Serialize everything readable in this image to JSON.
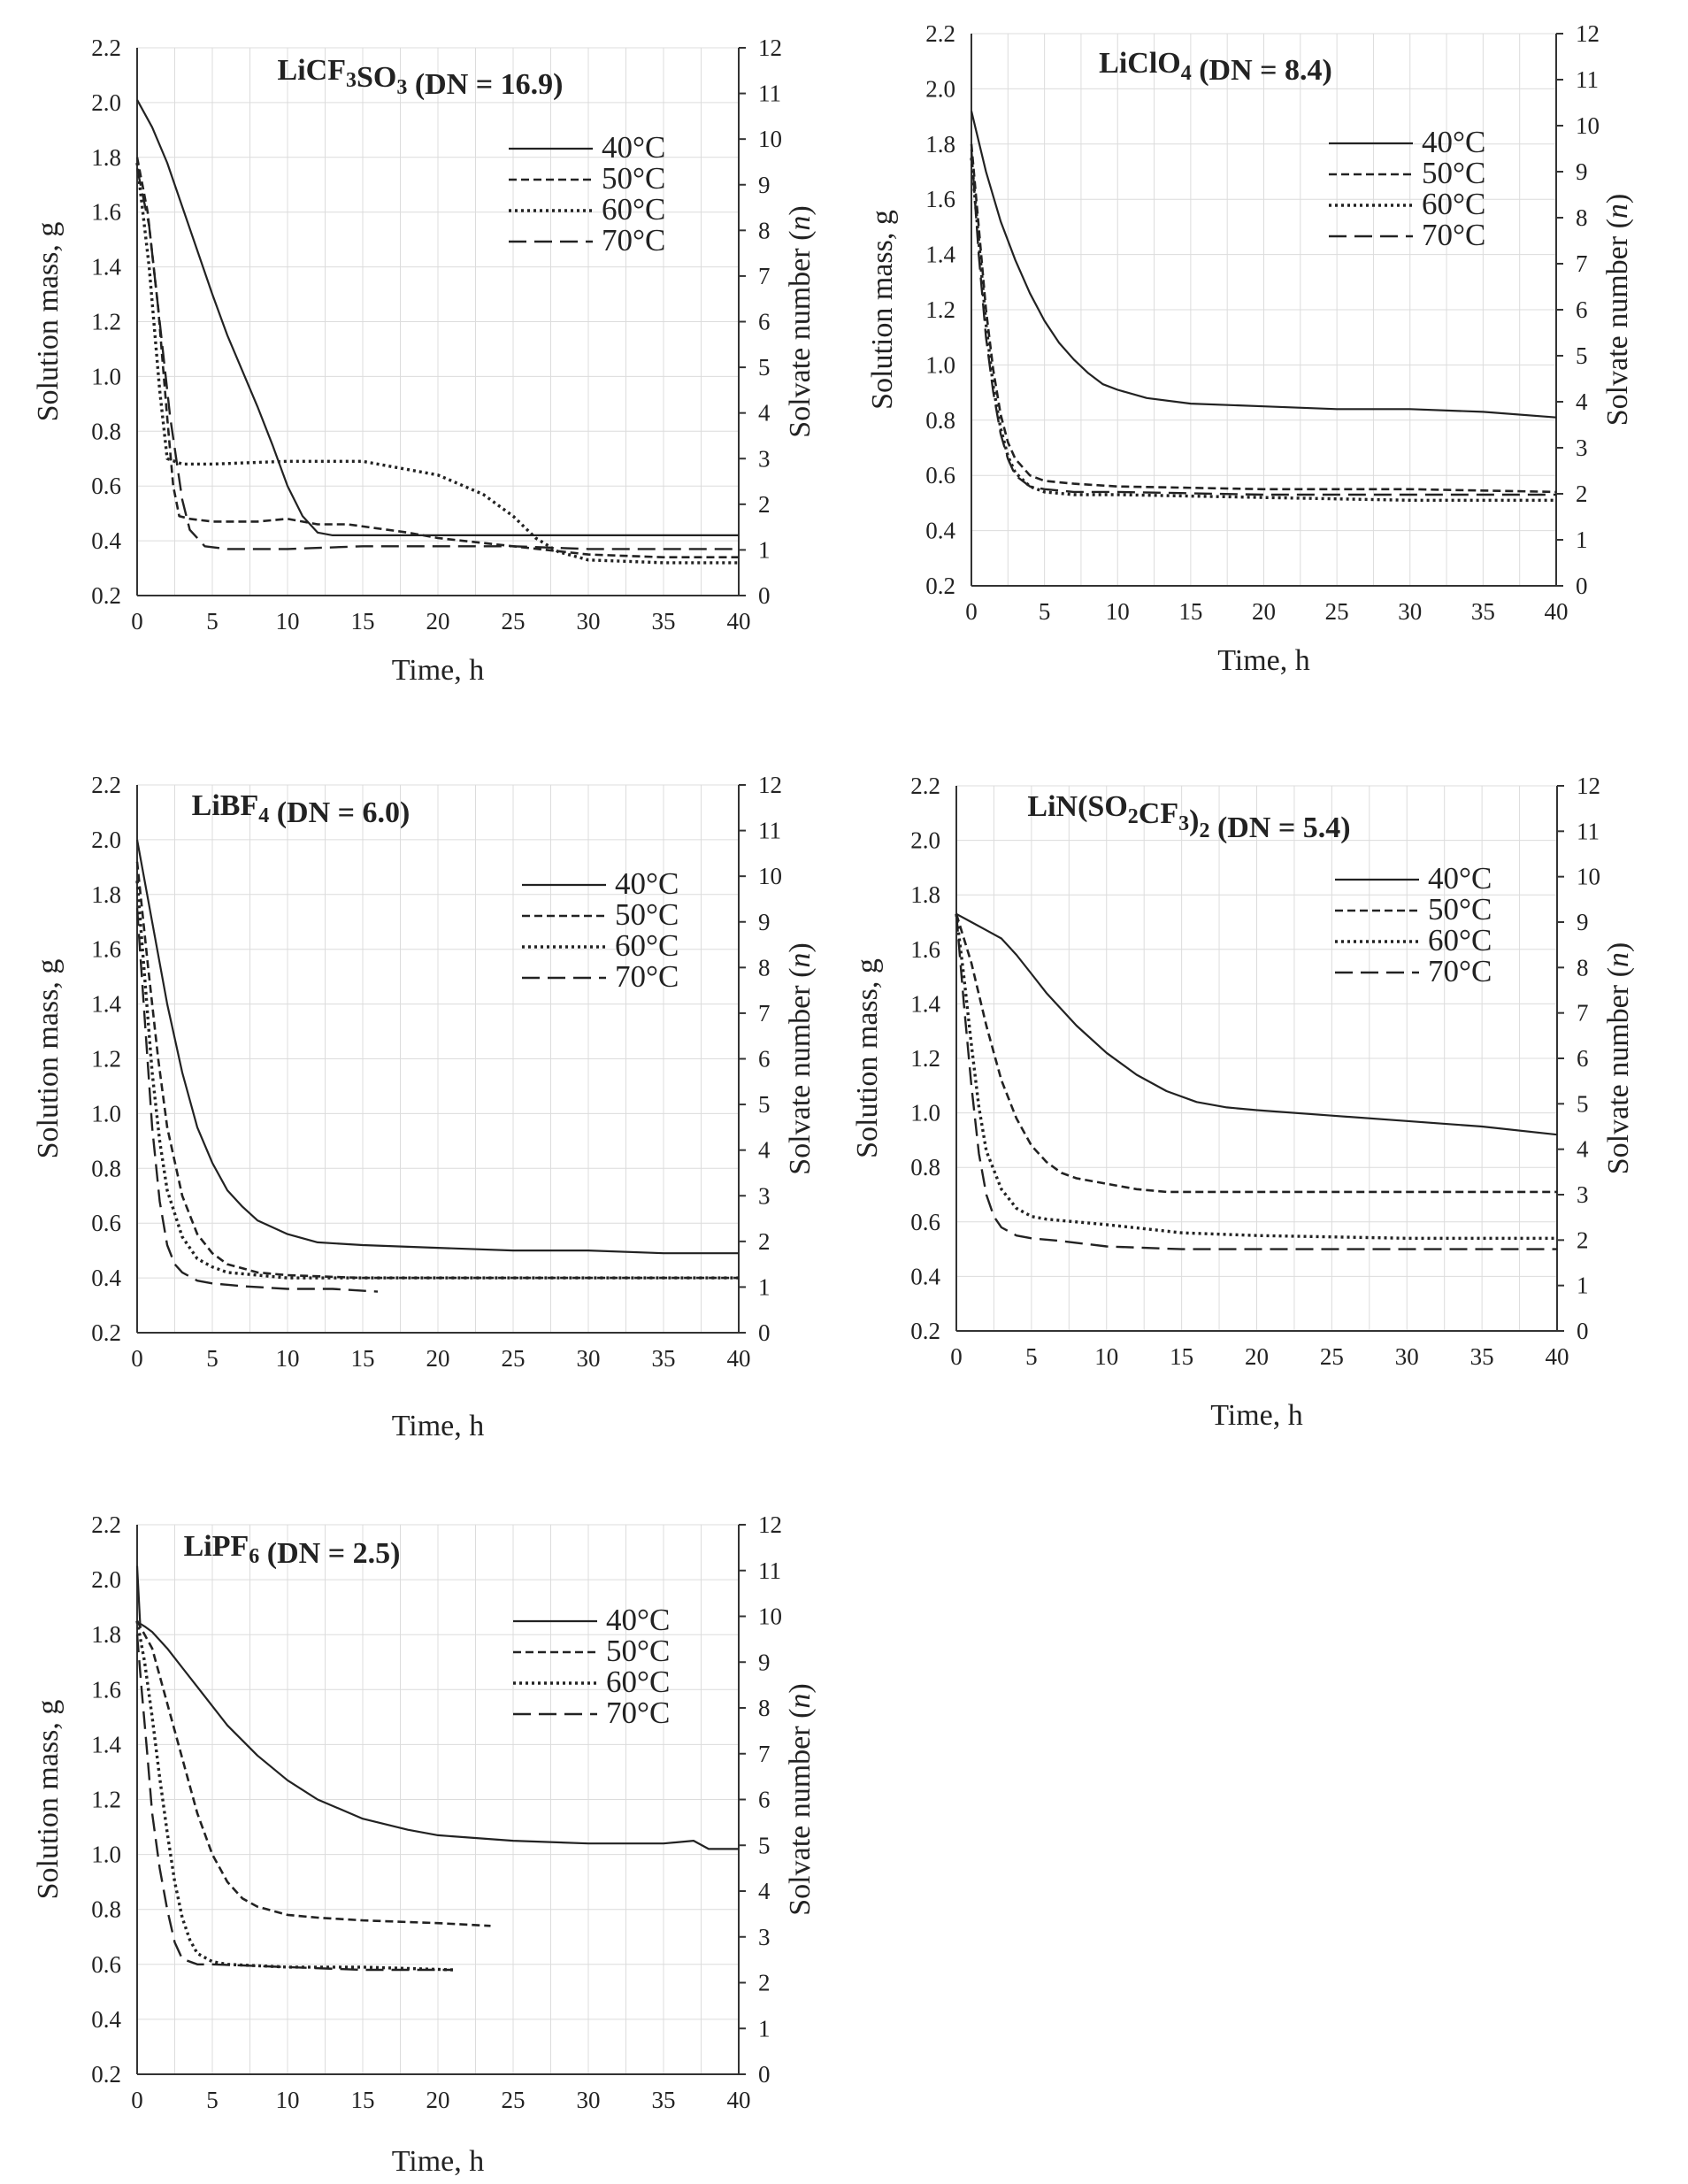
{
  "figure": {
    "common": {
      "xlabel": "Time, h",
      "ylabel_left": "Solution mass, g",
      "ylabel_right_prefix": "Solvate number (",
      "ylabel_right_var": "n",
      "ylabel_right_suffix": ")",
      "colors": {
        "line": "#222222",
        "grid": "#dcdcdc",
        "frame": "#333333",
        "background": "#ffffff"
      },
      "legend_labels": [
        "40°C",
        "50°C",
        "60°C",
        "70°C"
      ],
      "line_styles": [
        "solid",
        "dashed",
        "dotted",
        "long-dashed"
      ]
    }
  },
  "chart_data": [
    {
      "type": "line",
      "title_parts": [
        {
          "t": "LiCF",
          "sub": false
        },
        {
          "t": "3",
          "sub": true
        },
        {
          "t": "SO",
          "sub": false
        },
        {
          "t": "3",
          "sub": true
        },
        {
          "t": " (DN = 16.9)",
          "sub": false
        }
      ],
      "xlabel": "Time, h",
      "ylabel": "Solution mass, g",
      "y2label": "Solvate number (n)",
      "xlim": [
        0,
        40
      ],
      "ylim": [
        0.2,
        2.2
      ],
      "y2lim": [
        0,
        12
      ],
      "xticks": [
        0,
        5,
        10,
        15,
        20,
        25,
        30,
        35,
        40
      ],
      "yticks": [
        "0.2",
        "0.4",
        "0.6",
        "0.8",
        "1.0",
        "1.2",
        "1.4",
        "1.6",
        "1.8",
        "2.0",
        "2.2"
      ],
      "y2ticks": [
        0,
        1,
        2,
        3,
        4,
        5,
        6,
        7,
        8,
        9,
        10,
        11,
        12
      ],
      "legend": "upper-right",
      "series": [
        {
          "name": "40°C",
          "style": "solid",
          "x": [
            0,
            1,
            2,
            3,
            4,
            5,
            6,
            7,
            8,
            9,
            10,
            11,
            12,
            13,
            15,
            20,
            25,
            30,
            35,
            40
          ],
          "y": [
            2.01,
            1.91,
            1.78,
            1.62,
            1.46,
            1.3,
            1.15,
            1.02,
            0.89,
            0.75,
            0.6,
            0.49,
            0.43,
            0.42,
            0.42,
            0.42,
            0.42,
            0.42,
            0.42,
            0.42
          ]
        },
        {
          "name": "50°C",
          "style": "dashed",
          "x": [
            0,
            0.7,
            1.4,
            2,
            2.4,
            2.8,
            3.5,
            5,
            8,
            10,
            12,
            14,
            18,
            20,
            25,
            30,
            35,
            40
          ],
          "y": [
            1.8,
            1.6,
            1.25,
            0.85,
            0.6,
            0.49,
            0.48,
            0.47,
            0.47,
            0.48,
            0.46,
            0.46,
            0.43,
            0.41,
            0.38,
            0.35,
            0.34,
            0.34
          ]
        },
        {
          "name": "60°C",
          "style": "dotted",
          "x": [
            0,
            0.8,
            1.5,
            2,
            3,
            5,
            10,
            15,
            20,
            23,
            25,
            26.5,
            28,
            30,
            35,
            40
          ],
          "y": [
            1.78,
            1.4,
            0.95,
            0.7,
            0.68,
            0.68,
            0.69,
            0.69,
            0.64,
            0.57,
            0.49,
            0.41,
            0.36,
            0.33,
            0.32,
            0.32
          ]
        },
        {
          "name": "70°C",
          "style": "long-dashed",
          "x": [
            0,
            0.8,
            1.5,
            2.2,
            3,
            3.5,
            4.5,
            6,
            10,
            15,
            20,
            25,
            30,
            35,
            40
          ],
          "y": [
            1.76,
            1.55,
            1.2,
            0.85,
            0.55,
            0.44,
            0.38,
            0.37,
            0.37,
            0.38,
            0.38,
            0.38,
            0.37,
            0.37,
            0.37
          ]
        }
      ]
    },
    {
      "type": "line",
      "title_parts": [
        {
          "t": "LiClO",
          "sub": false
        },
        {
          "t": "4",
          "sub": true
        },
        {
          "t": " (DN = 8.4)",
          "sub": false
        }
      ],
      "xlabel": "Time, h",
      "ylabel": "Solution mass, g",
      "y2label": "Solvate number (n)",
      "xlim": [
        0,
        40
      ],
      "ylim": [
        0.2,
        2.2
      ],
      "y2lim": [
        0,
        12
      ],
      "xticks": [
        0,
        5,
        10,
        15,
        20,
        25,
        30,
        35,
        40
      ],
      "yticks": [
        "0.2",
        "0.4",
        "0.6",
        "0.8",
        "1.0",
        "1.2",
        "1.4",
        "1.6",
        "1.8",
        "2.0",
        "2.2"
      ],
      "y2ticks": [
        0,
        1,
        2,
        3,
        4,
        5,
        6,
        7,
        8,
        9,
        10,
        11,
        12
      ],
      "legend": "upper-right",
      "series": [
        {
          "name": "40°C",
          "style": "solid",
          "x": [
            0,
            1,
            2,
            3,
            4,
            5,
            6,
            7,
            8,
            9,
            10,
            12,
            15,
            20,
            25,
            30,
            35,
            40
          ],
          "y": [
            1.92,
            1.7,
            1.52,
            1.38,
            1.26,
            1.16,
            1.08,
            1.02,
            0.97,
            0.93,
            0.91,
            0.88,
            0.86,
            0.85,
            0.84,
            0.84,
            0.83,
            0.81
          ]
        },
        {
          "name": "50°C",
          "style": "dashed",
          "x": [
            0,
            0.5,
            1,
            1.5,
            2,
            2.5,
            3,
            4,
            5,
            7,
            10,
            20,
            30,
            40
          ],
          "y": [
            1.8,
            1.5,
            1.2,
            0.98,
            0.82,
            0.72,
            0.66,
            0.6,
            0.58,
            0.57,
            0.56,
            0.55,
            0.55,
            0.54
          ]
        },
        {
          "name": "60°C",
          "style": "dotted",
          "x": [
            0,
            0.5,
            1,
            1.5,
            2,
            2.5,
            3,
            4,
            5,
            7,
            10,
            20,
            30,
            40
          ],
          "y": [
            1.75,
            1.45,
            1.15,
            0.92,
            0.77,
            0.67,
            0.61,
            0.56,
            0.54,
            0.53,
            0.53,
            0.52,
            0.51,
            0.51
          ]
        },
        {
          "name": "70°C",
          "style": "long-dashed",
          "x": [
            0,
            0.5,
            1,
            1.5,
            2,
            2.5,
            3,
            4,
            5,
            7,
            10,
            20,
            30,
            40
          ],
          "y": [
            1.78,
            1.4,
            1.1,
            0.9,
            0.75,
            0.66,
            0.6,
            0.56,
            0.55,
            0.54,
            0.54,
            0.53,
            0.53,
            0.53
          ]
        }
      ]
    },
    {
      "type": "line",
      "title_parts": [
        {
          "t": "LiBF",
          "sub": false
        },
        {
          "t": "4",
          "sub": true
        },
        {
          "t": " (DN = 6.0)",
          "sub": false
        }
      ],
      "xlabel": "Time, h",
      "ylabel": "Solution mass, g",
      "y2label": "Solvate number (n)",
      "xlim": [
        0,
        40
      ],
      "ylim": [
        0.2,
        2.2
      ],
      "y2lim": [
        0,
        12
      ],
      "xticks": [
        0,
        5,
        10,
        15,
        20,
        25,
        30,
        35,
        40
      ],
      "yticks": [
        "0.2",
        "0.4",
        "0.6",
        "0.8",
        "1.0",
        "1.2",
        "1.4",
        "1.6",
        "1.8",
        "2.0",
        "2.2"
      ],
      "y2ticks": [
        0,
        1,
        2,
        3,
        4,
        5,
        6,
        7,
        8,
        9,
        10,
        11,
        12
      ],
      "legend": "upper-right",
      "series": [
        {
          "name": "40°C",
          "style": "solid",
          "x": [
            0,
            1,
            2,
            3,
            4,
            5,
            6,
            7,
            8,
            10,
            12,
            15,
            20,
            25,
            30,
            35,
            40
          ],
          "y": [
            2.0,
            1.7,
            1.4,
            1.15,
            0.95,
            0.82,
            0.72,
            0.66,
            0.61,
            0.56,
            0.53,
            0.52,
            0.51,
            0.5,
            0.5,
            0.49,
            0.49
          ]
        },
        {
          "name": "50°C",
          "style": "dashed",
          "x": [
            0,
            0.7,
            1.4,
            2,
            3,
            4,
            5,
            6,
            8,
            10,
            15,
            20,
            30,
            40
          ],
          "y": [
            1.92,
            1.55,
            1.2,
            0.95,
            0.7,
            0.56,
            0.49,
            0.45,
            0.42,
            0.41,
            0.4,
            0.4,
            0.4,
            0.4
          ]
        },
        {
          "name": "60°C",
          "style": "dotted",
          "x": [
            0,
            0.5,
            1,
            1.5,
            2,
            3,
            4,
            5,
            6,
            8,
            10,
            15,
            20,
            30,
            40
          ],
          "y": [
            1.85,
            1.5,
            1.15,
            0.9,
            0.72,
            0.55,
            0.47,
            0.44,
            0.42,
            0.41,
            0.4,
            0.4,
            0.4,
            0.4,
            0.4
          ]
        },
        {
          "name": "70°C",
          "style": "long-dashed",
          "x": [
            0,
            0.5,
            1,
            1.5,
            2,
            2.5,
            3,
            4,
            5,
            7,
            10,
            13,
            16
          ],
          "y": [
            1.75,
            1.35,
            0.95,
            0.68,
            0.52,
            0.45,
            0.42,
            0.39,
            0.38,
            0.37,
            0.36,
            0.36,
            0.35
          ]
        }
      ]
    },
    {
      "type": "line",
      "title_parts": [
        {
          "t": "LiN(SO",
          "sub": false
        },
        {
          "t": "2",
          "sub": true
        },
        {
          "t": "CF",
          "sub": false
        },
        {
          "t": "3",
          "sub": true
        },
        {
          "t": ")",
          "sub": false
        },
        {
          "t": "2",
          "sub": true
        },
        {
          "t": " (DN = 5.4)",
          "sub": false
        }
      ],
      "xlabel": "Time, h",
      "ylabel": "Solution mass, g",
      "y2label": "Solvate number (n)",
      "xlim": [
        0,
        40
      ],
      "ylim": [
        0.2,
        2.2
      ],
      "y2lim": [
        0,
        12
      ],
      "xticks": [
        0,
        5,
        10,
        15,
        20,
        25,
        30,
        35,
        40
      ],
      "yticks": [
        "0.2",
        "0.4",
        "0.6",
        "0.8",
        "1.0",
        "1.2",
        "1.4",
        "1.6",
        "1.8",
        "2.0",
        "2.2"
      ],
      "y2ticks": [
        0,
        1,
        2,
        3,
        4,
        5,
        6,
        7,
        8,
        9,
        10,
        11,
        12
      ],
      "legend": "upper-right",
      "series": [
        {
          "name": "40°C",
          "style": "solid",
          "x": [
            0,
            1,
            2,
            3,
            4,
            5,
            6,
            8,
            10,
            12,
            14,
            16,
            18,
            20,
            25,
            30,
            35,
            40
          ],
          "y": [
            1.73,
            1.7,
            1.67,
            1.64,
            1.58,
            1.51,
            1.44,
            1.32,
            1.22,
            1.14,
            1.08,
            1.04,
            1.02,
            1.01,
            0.99,
            0.97,
            0.95,
            0.92
          ]
        },
        {
          "name": "50°C",
          "style": "dashed",
          "x": [
            0,
            1,
            2,
            3,
            4,
            5,
            6,
            7,
            8,
            10,
            12,
            14,
            15,
            20,
            30,
            40
          ],
          "y": [
            1.73,
            1.55,
            1.32,
            1.12,
            0.98,
            0.88,
            0.82,
            0.78,
            0.76,
            0.74,
            0.72,
            0.71,
            0.71,
            0.71,
            0.71,
            0.71
          ]
        },
        {
          "name": "60°C",
          "style": "dotted",
          "x": [
            0,
            0.5,
            1,
            1.5,
            2,
            3,
            4,
            5,
            6,
            8,
            10,
            15,
            20,
            30,
            40
          ],
          "y": [
            1.73,
            1.5,
            1.25,
            1.02,
            0.86,
            0.72,
            0.65,
            0.62,
            0.61,
            0.6,
            0.59,
            0.56,
            0.55,
            0.54,
            0.54
          ]
        },
        {
          "name": "70°C",
          "style": "long-dashed",
          "x": [
            0,
            0.5,
            1,
            1.5,
            2,
            2.5,
            3,
            4,
            5,
            7,
            10,
            15,
            20,
            30,
            40
          ],
          "y": [
            1.73,
            1.4,
            1.1,
            0.85,
            0.7,
            0.62,
            0.58,
            0.55,
            0.54,
            0.53,
            0.51,
            0.5,
            0.5,
            0.5,
            0.5
          ]
        }
      ]
    },
    {
      "type": "line",
      "title_parts": [
        {
          "t": "LiPF",
          "sub": false
        },
        {
          "t": "6",
          "sub": true
        },
        {
          "t": " (DN = 2.5)",
          "sub": false
        }
      ],
      "xlabel": "Time, h",
      "ylabel": "Solution mass, g",
      "y2label": "Solvate number (n)",
      "xlim": [
        0,
        40
      ],
      "ylim": [
        0.2,
        2.2
      ],
      "y2lim": [
        0,
        12
      ],
      "xticks": [
        0,
        5,
        10,
        15,
        20,
        25,
        30,
        35,
        40
      ],
      "yticks": [
        "0.2",
        "0.4",
        "0.6",
        "0.8",
        "1.0",
        "1.2",
        "1.4",
        "1.6",
        "1.8",
        "2.0",
        "2.2"
      ],
      "y2ticks": [
        0,
        1,
        2,
        3,
        4,
        5,
        6,
        7,
        8,
        9,
        10,
        11,
        12
      ],
      "legend": "upper-right",
      "series": [
        {
          "name": "40°C",
          "style": "solid",
          "x": [
            0,
            0.2,
            0.5,
            1,
            2,
            3,
            4,
            5,
            6,
            8,
            10,
            12,
            15,
            18,
            20,
            25,
            30,
            35,
            37,
            38,
            40
          ],
          "y": [
            2.05,
            1.84,
            1.83,
            1.81,
            1.75,
            1.68,
            1.61,
            1.54,
            1.47,
            1.36,
            1.27,
            1.2,
            1.13,
            1.09,
            1.07,
            1.05,
            1.04,
            1.04,
            1.05,
            1.02,
            1.02
          ]
        },
        {
          "name": "50°C",
          "style": "dashed",
          "x": [
            0,
            1,
            2,
            3,
            4,
            5,
            6,
            7,
            8,
            10,
            12,
            15,
            20,
            23.5
          ],
          "y": [
            1.85,
            1.75,
            1.55,
            1.35,
            1.15,
            1.0,
            0.9,
            0.84,
            0.81,
            0.78,
            0.77,
            0.76,
            0.75,
            0.74
          ]
        },
        {
          "name": "60°C",
          "style": "dotted",
          "x": [
            0,
            0.5,
            1,
            1.5,
            2,
            2.5,
            3,
            3.5,
            4,
            5,
            6,
            10,
            15,
            21
          ],
          "y": [
            1.85,
            1.7,
            1.5,
            1.28,
            1.08,
            0.9,
            0.77,
            0.69,
            0.64,
            0.61,
            0.6,
            0.59,
            0.59,
            0.58
          ]
        },
        {
          "name": "70°C",
          "style": "long-dashed",
          "x": [
            0,
            0.3,
            0.7,
            1,
            1.5,
            2,
            2.5,
            3,
            4,
            5,
            10,
            15,
            21
          ],
          "y": [
            1.8,
            1.6,
            1.35,
            1.15,
            0.95,
            0.8,
            0.68,
            0.62,
            0.6,
            0.6,
            0.59,
            0.58,
            0.58
          ]
        }
      ]
    }
  ]
}
